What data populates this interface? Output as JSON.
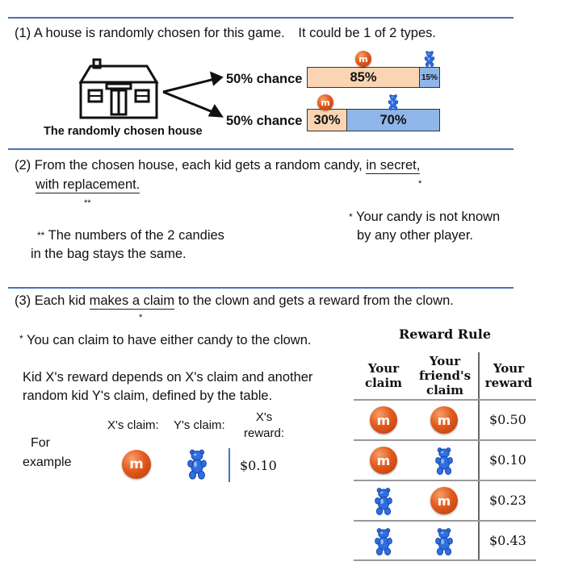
{
  "section1": {
    "text_a": "(1) A house is randomly chosen for this game.",
    "text_b": "It could be 1 of 2 types.",
    "house_label": "The randomly chosen house",
    "row1": {
      "chance": "50% chance",
      "mm_pct": "85%",
      "bear_pct": "15%",
      "mm_fraction": 0.85
    },
    "row2": {
      "chance": "50% chance",
      "mm_pct": "30%",
      "bear_pct": "70%",
      "mm_fraction": 0.3
    },
    "mm_letter": "m"
  },
  "section2": {
    "line1_pre": "(2) From the chosen house, each kid gets a random candy,",
    "line1_ul": "in secret,",
    "line2_ul": "with replacement.",
    "mark_star": "*",
    "mark_dstar": "**",
    "note_star_l1": "Your candy is not known",
    "note_star_l2": "by any other player.",
    "note_dstar_l1": "The numbers of the 2 candies",
    "note_dstar_l2": "in the bag stays the same."
  },
  "section3": {
    "line_pre": "(3) Each kid",
    "line_ul": "makes a claim",
    "line_post": "to the clown and gets a reward from the clown.",
    "mark_star": "*",
    "note": "You can claim to have either candy to the clown.",
    "desc_l1": "Kid X's reward depends on X's claim and another",
    "desc_l2": "random kid Y's claim, defined by the table.",
    "example": {
      "label_l1": "For",
      "label_l2": "example",
      "x_claim": "X's claim:",
      "y_claim": "Y's claim:",
      "x_reward_l1": "X's",
      "x_reward_l2": "reward:",
      "reward": "$0.10"
    },
    "table": {
      "title": "Reward Rule",
      "headers": [
        {
          "l1": "Your",
          "l2": "claim",
          "l3": ""
        },
        {
          "l1": "Your",
          "l2": "friend's",
          "l3": "claim"
        },
        {
          "l1": "Your",
          "l2": "reward",
          "l3": ""
        }
      ],
      "rows": [
        {
          "yours": "mm",
          "friend": "mm",
          "reward": "$0.50"
        },
        {
          "yours": "mm",
          "friend": "bear",
          "reward": "$0.10"
        },
        {
          "yours": "bear",
          "friend": "mm",
          "reward": "$0.23"
        },
        {
          "yours": "bear",
          "friend": "bear",
          "reward": "$0.43"
        }
      ]
    }
  },
  "colors": {
    "rule": "#4a72b8",
    "peach": "#fbd5b3",
    "blue": "#8fb6e8",
    "mm": "#e35a1c",
    "bear": "#2f6fe0"
  }
}
